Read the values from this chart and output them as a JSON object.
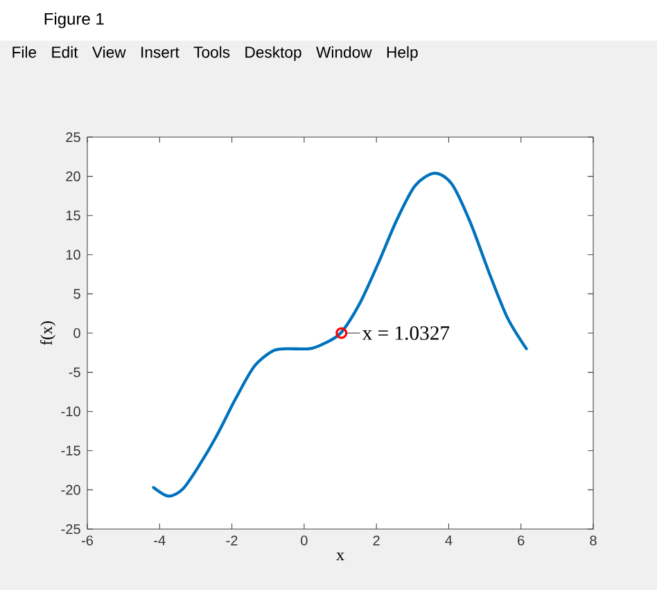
{
  "chart_data": {
    "type": "line",
    "xlabel": "x",
    "ylabel": "f(x)",
    "xlim": [
      -6,
      8
    ],
    "xticks": [
      -6,
      -4,
      -2,
      0,
      2,
      4,
      6,
      8
    ],
    "ylim": [
      -25,
      25
    ],
    "yticks": [
      -25,
      -20,
      -15,
      -10,
      -5,
      0,
      5,
      10,
      15,
      20,
      25
    ],
    "series": [
      {
        "color": "#0072bd",
        "marker": "none",
        "x": [
          -4.17,
          -3.75,
          -3.36,
          -2.92,
          -2.41,
          -1.9,
          -1.39,
          -0.88,
          -0.5,
          0.14,
          0.52,
          1.01,
          1.54,
          2.05,
          2.56,
          3.07,
          3.61,
          4.09,
          4.6,
          5.11,
          5.62,
          6.15
        ],
        "values": [
          -19.7,
          -20.8,
          -19.9,
          -17.0,
          -13.0,
          -8.4,
          -4.3,
          -2.3,
          -2.0,
          -2.0,
          -1.4,
          0,
          3.8,
          8.9,
          14.4,
          18.8,
          20.4,
          19.0,
          14.1,
          7.8,
          2.0,
          -2.0
        ]
      },
      {
        "type": "scatter",
        "color": "#ff0000",
        "marker": "circle",
        "x": [
          1.0327
        ],
        "values": [
          0
        ]
      }
    ],
    "annotations": [
      {
        "text": "x = 1.0327",
        "x": 1.0327,
        "y": 0
      },
      "Figure 1",
      "File",
      "Edit",
      "View",
      "Insert",
      "Tools",
      "Desktop",
      "Window",
      "Help"
    ]
  }
}
